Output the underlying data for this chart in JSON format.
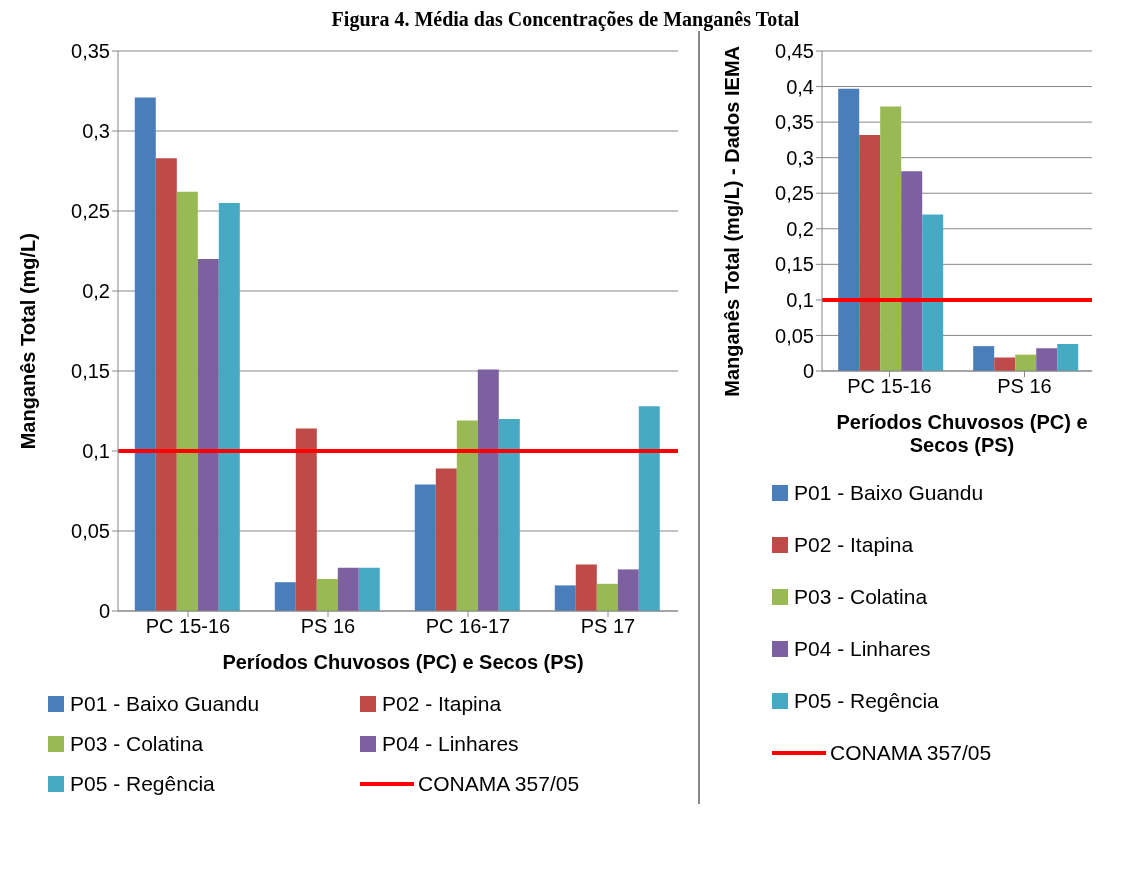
{
  "chart_data": [
    {
      "type": "bar",
      "title": "Figura 4. Média das Concentrações de Manganês Total",
      "xlabel": "Períodos Chuvosos (PC) e Secos (PS)",
      "ylabel": "Manganês Total (mg/L)",
      "categories": [
        "PC 15-16",
        "PS 16",
        "PC 16-17",
        "PS 17"
      ],
      "series": [
        {
          "name": "P01 - Baixo Guandu",
          "color": "#4a7ebb",
          "values": [
            0.321,
            0.018,
            0.079,
            0.016
          ]
        },
        {
          "name": "P02 - Itapina",
          "color": "#be4b48",
          "values": [
            0.283,
            0.114,
            0.089,
            0.029
          ]
        },
        {
          "name": "P03 - Colatina",
          "color": "#98b954",
          "values": [
            0.262,
            0.02,
            0.119,
            0.017
          ]
        },
        {
          "name": "P04 - Linhares",
          "color": "#7d60a0",
          "values": [
            0.22,
            0.027,
            0.151,
            0.026
          ]
        },
        {
          "name": "P05 - Regência",
          "color": "#46aac5",
          "values": [
            0.255,
            0.027,
            0.12,
            0.128
          ]
        }
      ],
      "ylim": [
        0,
        0.35
      ],
      "yticks": [
        0,
        {
          "value": 0.05,
          "label": "0,05"
        },
        {
          "value": 0.1,
          "label": "0,1"
        },
        {
          "value": 0.15,
          "label": "0,15"
        },
        {
          "value": 0.2,
          "label": "0,2"
        },
        {
          "value": 0.25,
          "label": "0,25"
        },
        {
          "value": 0.3,
          "label": "0,3"
        },
        {
          "value": 0.35,
          "label": "0,35"
        }
      ],
      "grid": "y",
      "legend": "bottom",
      "ref_lines": [
        {
          "axis": "y",
          "value": 0.1,
          "label": "CONAMA 357/05",
          "color": "#ff0000"
        }
      ]
    },
    {
      "type": "bar",
      "xlabel": "Períodos Chuvosos (PC) e Secos (PS)",
      "ylabel": "Manganês Total (mg/L) - Dados IEMA",
      "categories": [
        "PC 15-16",
        "PS 16"
      ],
      "series": [
        {
          "name": "P01 - Baixo Guandu",
          "color": "#4a7ebb",
          "values": [
            0.397,
            0.035
          ]
        },
        {
          "name": "P02 - Itapina",
          "color": "#be4b48",
          "values": [
            0.332,
            0.019
          ]
        },
        {
          "name": "P03 - Colatina",
          "color": "#98b954",
          "values": [
            0.372,
            0.023
          ]
        },
        {
          "name": "P04 - Linhares",
          "color": "#7d60a0",
          "values": [
            0.281,
            0.032
          ]
        },
        {
          "name": "P05 - Regência",
          "color": "#46aac5",
          "values": [
            0.22,
            0.038
          ]
        }
      ],
      "ylim": [
        0,
        0.45
      ],
      "yticks": [
        0,
        {
          "value": 0.05,
          "label": "0,05"
        },
        {
          "value": 0.1,
          "label": "0,1"
        },
        {
          "value": 0.15,
          "label": "0,15"
        },
        {
          "value": 0.2,
          "label": "0,2"
        },
        {
          "value": 0.25,
          "label": "0,25"
        },
        {
          "value": 0.3,
          "label": "0,3"
        },
        {
          "value": 0.35,
          "label": "0,35"
        },
        {
          "value": 0.4,
          "label": "0,4"
        },
        {
          "value": 0.45,
          "label": "0,45"
        }
      ],
      "grid": "y",
      "legend": "bottom",
      "ref_lines": [
        {
          "axis": "y",
          "value": 0.1,
          "label": "CONAMA 357/05",
          "color": "#ff0000"
        }
      ]
    }
  ]
}
